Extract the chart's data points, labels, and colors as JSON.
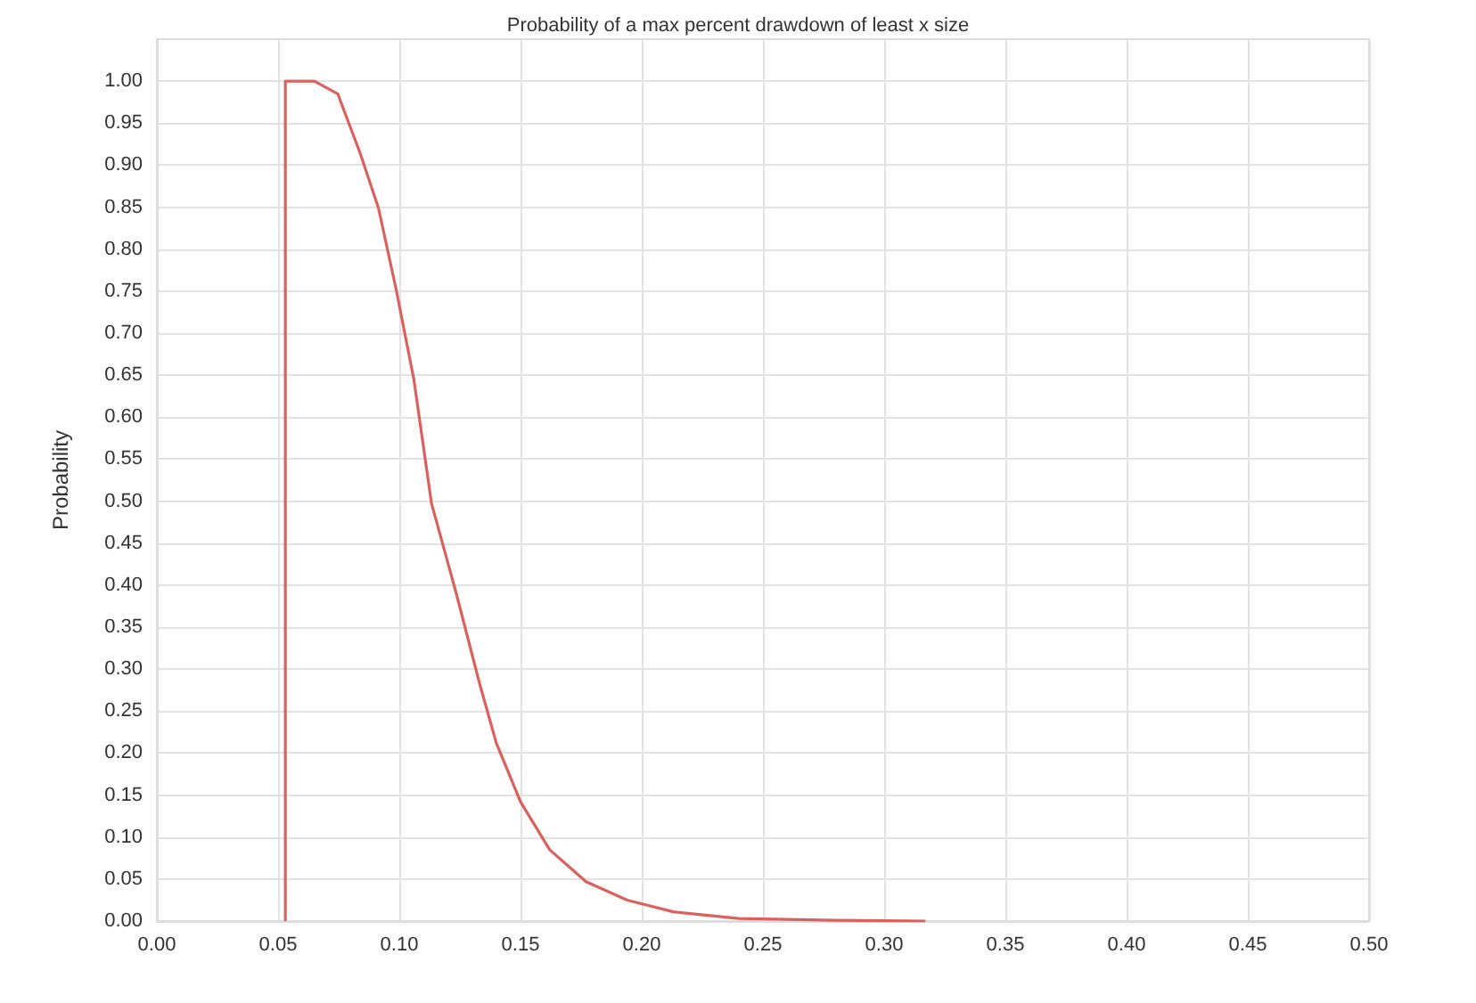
{
  "chart_data": {
    "type": "line",
    "title": "Probability of a max percent drawdown of least x size",
    "ylabel": "Probability",
    "series": [
      {
        "color": "#d9625f",
        "x": [
          0.053,
          0.053,
          0.065,
          0.0746,
          0.084,
          0.0914,
          0.0987,
          0.106,
          0.1133,
          0.1235,
          0.133,
          0.14,
          0.15,
          0.162,
          0.177,
          0.194,
          0.213,
          0.24,
          0.28,
          0.317
        ],
        "values": [
          0,
          1.0,
          1.0,
          0.985,
          0.913,
          0.849,
          0.752,
          0.645,
          0.497,
          0.39,
          0.284,
          0.212,
          0.142,
          0.085,
          0.047,
          0.025,
          0.011,
          0.003,
          0.001,
          0.0
        ]
      }
    ],
    "xlim": [
      0,
      0.5
    ],
    "xticks": [
      {
        "value": 0,
        "label": "0.00"
      },
      {
        "value": 0.05,
        "label": "0.05"
      },
      {
        "value": 0.1,
        "label": "0.10"
      },
      {
        "value": 0.15,
        "label": "0.15"
      },
      {
        "value": 0.2,
        "label": "0.20"
      },
      {
        "value": 0.25,
        "label": "0.25"
      },
      {
        "value": 0.3,
        "label": "0.30"
      },
      {
        "value": 0.35,
        "label": "0.35"
      },
      {
        "value": 0.4,
        "label": "0.40"
      },
      {
        "value": 0.45,
        "label": "0.45"
      },
      {
        "value": 0.5,
        "label": "0.50"
      }
    ],
    "ylim": [
      0,
      1.05
    ],
    "yticks": [
      {
        "value": 0,
        "label": "0.00"
      },
      {
        "value": 0.05,
        "label": "0.05"
      },
      {
        "value": 0.1,
        "label": "0.10"
      },
      {
        "value": 0.15,
        "label": "0.15"
      },
      {
        "value": 0.2,
        "label": "0.20"
      },
      {
        "value": 0.25,
        "label": "0.25"
      },
      {
        "value": 0.3,
        "label": "0.30"
      },
      {
        "value": 0.35,
        "label": "0.35"
      },
      {
        "value": 0.4,
        "label": "0.40"
      },
      {
        "value": 0.45,
        "label": "0.45"
      },
      {
        "value": 0.5,
        "label": "0.50"
      },
      {
        "value": 0.55,
        "label": "0.55"
      },
      {
        "value": 0.6,
        "label": "0.60"
      },
      {
        "value": 0.65,
        "label": "0.65"
      },
      {
        "value": 0.7,
        "label": "0.70"
      },
      {
        "value": 0.75,
        "label": "0.75"
      },
      {
        "value": 0.8,
        "label": "0.80"
      },
      {
        "value": 0.85,
        "label": "0.85"
      },
      {
        "value": 0.9,
        "label": "0.90"
      },
      {
        "value": 0.95,
        "label": "0.95"
      },
      {
        "value": 1.0,
        "label": "1.00"
      }
    ],
    "grid": true,
    "marker": "none",
    "line_style": "solid"
  }
}
